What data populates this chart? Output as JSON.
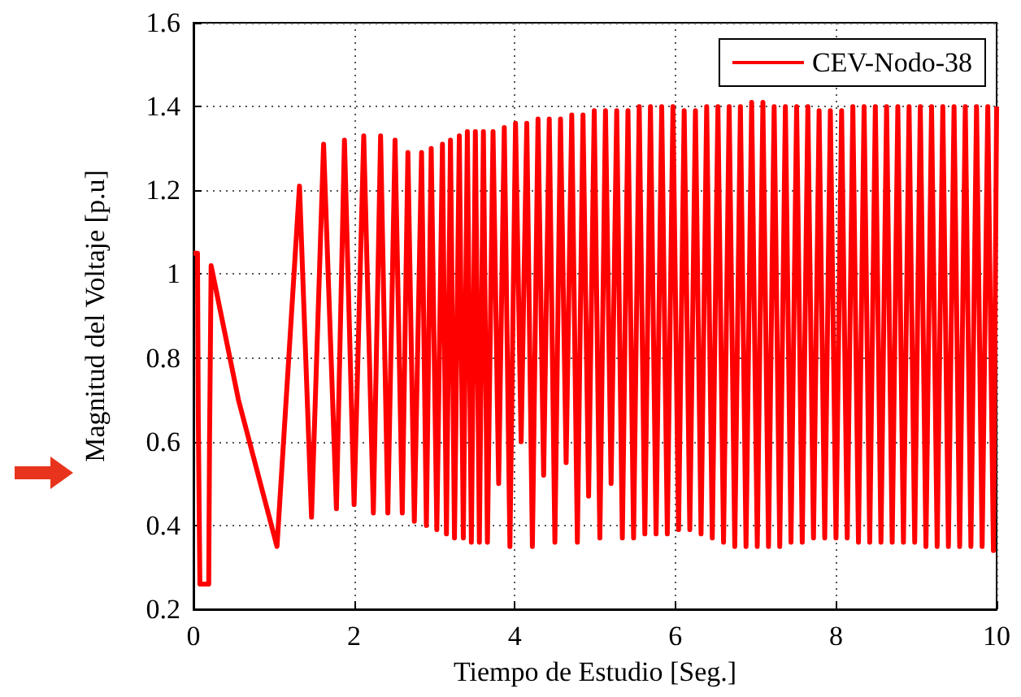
{
  "chart_data": {
    "type": "line",
    "xlabel": "Tiempo de Estudio [Seg.]",
    "ylabel": "Magnitud del Voltaje [p.u]",
    "xlim": [
      0,
      10
    ],
    "xticks": [
      0,
      2,
      4,
      6,
      8,
      10
    ],
    "ylim": [
      0.2,
      1.6
    ],
    "yticks": [
      0.2,
      0.4,
      0.6,
      0.8,
      1,
      1.2,
      1.4,
      1.6
    ],
    "grid": true,
    "legend": "top right",
    "marker": "none",
    "line_style": "solid",
    "series": [
      {
        "name": "CEV-Nodo-38",
        "color": "#ff0000",
        "x": [
          0,
          0.05,
          0.06,
          0.07,
          0.08,
          0.19,
          0.2,
          0.22,
          0.56,
          1.04,
          1.32,
          1.47,
          1.62,
          1.78,
          1.88,
          2.0,
          2.12,
          2.24,
          2.33,
          2.42,
          2.51,
          2.6,
          2.67,
          2.75,
          2.84,
          2.9,
          2.96,
          3.03,
          3.1,
          3.15,
          3.2,
          3.25,
          3.31,
          3.36,
          3.41,
          3.46,
          3.51,
          3.56,
          3.61,
          3.66,
          3.73,
          3.8,
          3.87,
          3.94,
          4.01,
          4.08,
          4.15,
          4.22,
          4.29,
          4.36,
          4.43,
          4.5,
          4.57,
          4.64,
          4.71,
          4.78,
          4.85,
          4.92,
          4.99,
          5.06,
          5.13,
          5.2,
          5.27,
          5.34,
          5.41,
          5.48,
          5.55,
          5.62,
          5.69,
          5.76,
          5.83,
          5.9,
          5.97,
          6.04,
          6.11,
          6.18,
          6.25,
          6.32,
          6.39,
          6.46,
          6.53,
          6.6,
          6.67,
          6.74,
          6.81,
          6.88,
          6.95,
          7.02,
          7.09,
          7.16,
          7.23,
          7.3,
          7.37,
          7.44,
          7.51,
          7.58,
          7.65,
          7.72,
          7.79,
          7.86,
          7.93,
          8.0,
          8.07,
          8.14,
          8.21,
          8.28,
          8.35,
          8.42,
          8.49,
          8.56,
          8.63,
          8.7,
          8.77,
          8.84,
          8.91,
          8.98,
          9.05,
          9.12,
          9.19,
          9.26,
          9.33,
          9.4,
          9.47,
          9.54,
          9.61,
          9.68,
          9.75,
          9.82,
          9.89,
          9.96,
          10
        ],
        "values": [
          1.05,
          1.05,
          0.66,
          0.66,
          0.26,
          0.26,
          0.6,
          1.02,
          0.7,
          0.35,
          1.21,
          0.42,
          1.31,
          0.44,
          1.32,
          0.45,
          1.33,
          0.43,
          1.33,
          0.43,
          1.32,
          0.43,
          1.29,
          0.41,
          1.29,
          0.4,
          1.3,
          0.39,
          1.31,
          0.38,
          1.32,
          0.37,
          1.33,
          0.37,
          1.34,
          0.36,
          1.34,
          0.36,
          1.34,
          0.36,
          1.34,
          0.5,
          1.35,
          0.35,
          1.36,
          0.6,
          1.36,
          0.35,
          1.37,
          0.52,
          1.37,
          0.36,
          1.37,
          0.55,
          1.38,
          0.36,
          1.38,
          0.47,
          1.39,
          0.37,
          1.39,
          0.5,
          1.39,
          0.37,
          1.39,
          0.37,
          1.4,
          0.38,
          1.4,
          0.38,
          1.4,
          0.38,
          1.4,
          0.39,
          1.39,
          0.39,
          1.39,
          0.38,
          1.4,
          0.37,
          1.4,
          0.36,
          1.4,
          0.35,
          1.4,
          0.35,
          1.41,
          0.35,
          1.41,
          0.35,
          1.4,
          0.35,
          1.4,
          0.36,
          1.4,
          0.36,
          1.4,
          0.37,
          1.39,
          0.37,
          1.39,
          0.37,
          1.39,
          0.37,
          1.4,
          0.36,
          1.4,
          0.36,
          1.4,
          0.36,
          1.4,
          0.36,
          1.4,
          0.36,
          1.4,
          0.36,
          1.4,
          0.35,
          1.4,
          0.35,
          1.4,
          0.35,
          1.4,
          0.35,
          1.4,
          0.35,
          1.4,
          0.35,
          1.4,
          0.34,
          1.4
        ]
      }
    ]
  }
}
